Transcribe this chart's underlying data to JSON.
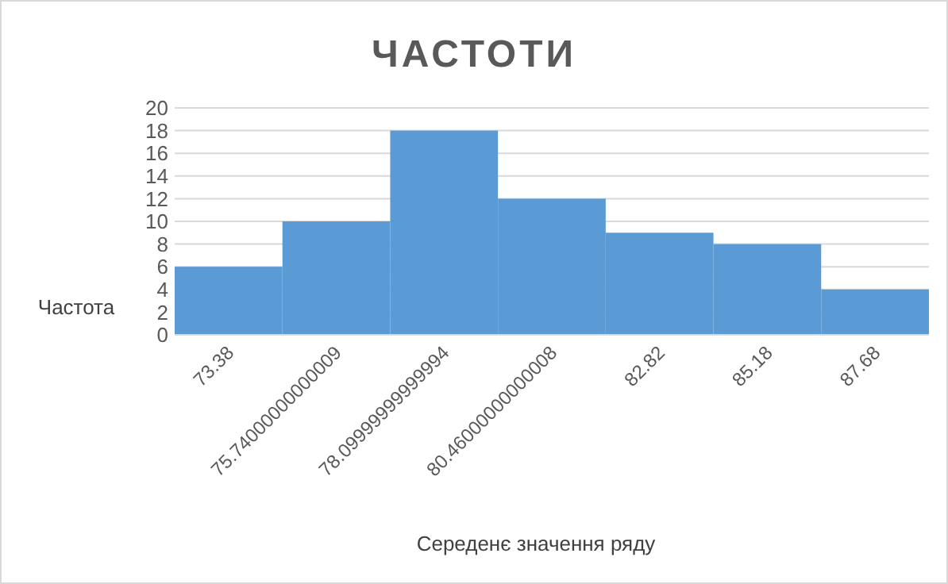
{
  "chart_data": {
    "type": "bar",
    "title": "ЧАСТОТИ",
    "xlabel": "Середенє значення ряду",
    "ylabel": "Частота",
    "categories": [
      "73.38",
      "75.74000000000009",
      "78.09999999999994",
      "80.46000000000008",
      "82.82",
      "85.18",
      "87.68"
    ],
    "values": [
      6,
      10,
      18,
      12,
      9,
      8,
      4
    ],
    "color": "#5b9bd5",
    "ylim": [
      0,
      20
    ],
    "yticks": [
      0,
      2,
      4,
      6,
      8,
      10,
      12,
      14,
      16,
      18,
      20
    ],
    "grid": "y"
  }
}
